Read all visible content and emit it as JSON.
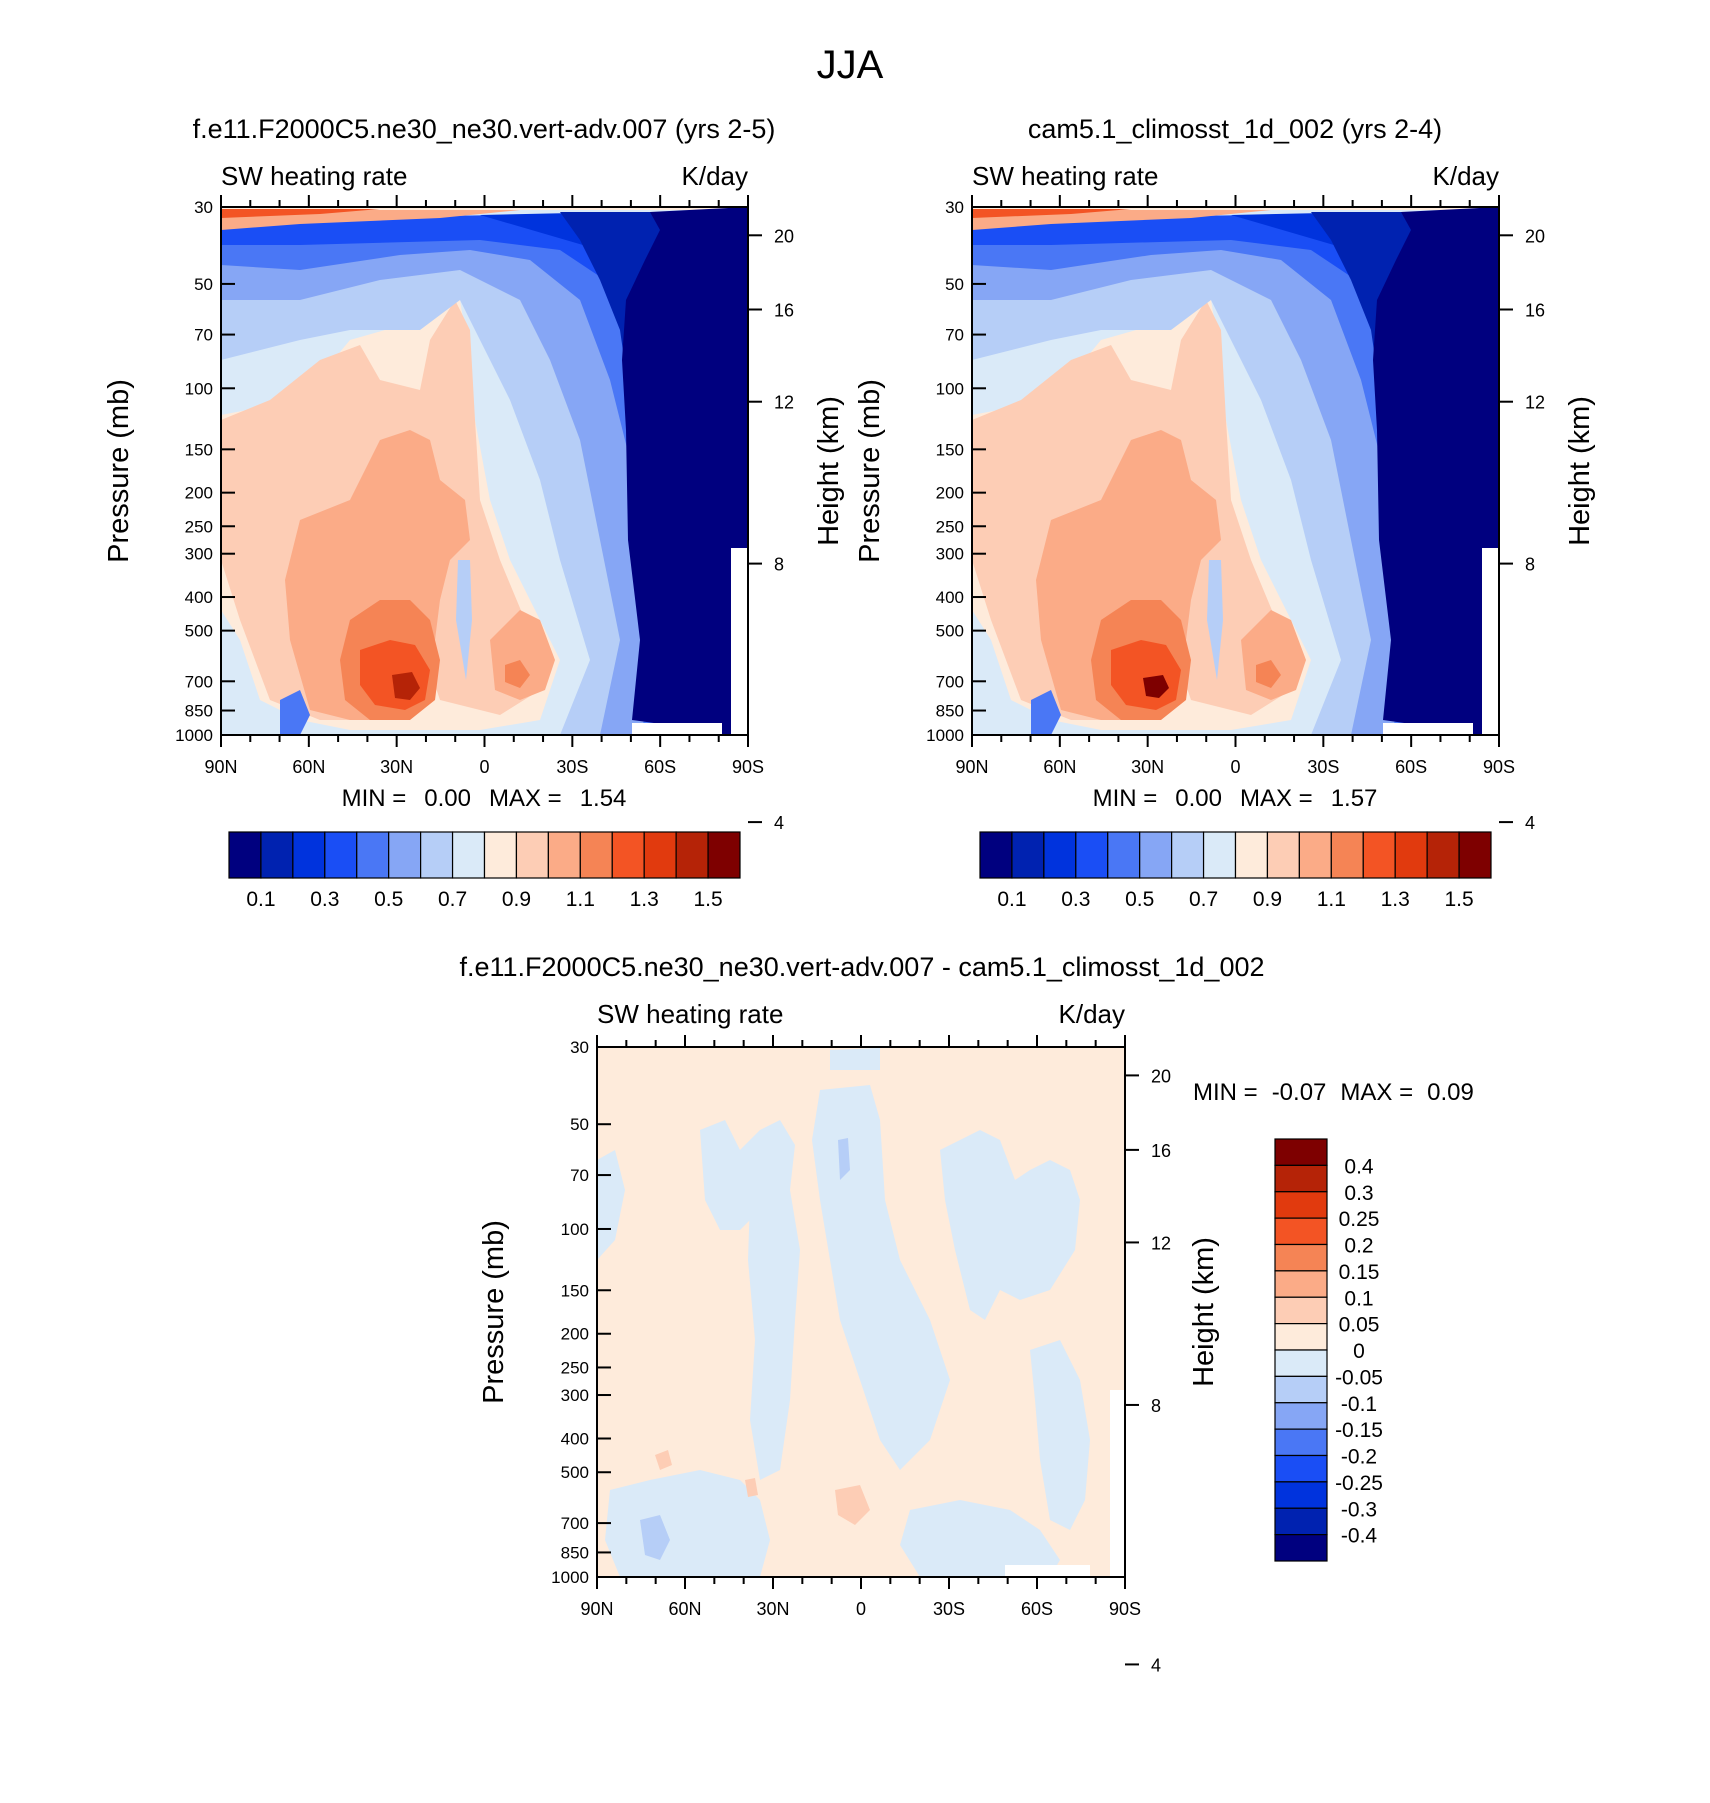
{
  "figure": {
    "title": "JJA"
  },
  "chart_data": [
    {
      "type": "heatmap",
      "title": "f.e11.F2000C5.ne30_ne30.vert-adv.007 (yrs 2-5)",
      "left_label": "SW heating rate",
      "right_label": "K/day",
      "ylabel": "Pressure (mb)",
      "ylabel_right": "Height (km)",
      "x_ticks": [
        "90N",
        "60N",
        "30N",
        "0",
        "30S",
        "60S",
        "90S"
      ],
      "y_ticks": [
        "30",
        "50",
        "70",
        "100",
        "150",
        "200",
        "250",
        "300",
        "400",
        "500",
        "700",
        "850",
        "1000"
      ],
      "height_ticks": [
        "20",
        "16",
        "12",
        "8",
        "4"
      ],
      "stats": {
        "min_label": "MIN =",
        "min": "0.00",
        "max_label": "MAX =",
        "max": "1.54"
      },
      "colorbar": {
        "orientation": "horizontal",
        "labels": [
          "0.1",
          "0.3",
          "0.5",
          "0.7",
          "0.9",
          "1.1",
          "1.3",
          "1.5"
        ],
        "colors": [
          "#00007f",
          "#0022b0",
          "#0033dd",
          "#1a4ef5",
          "#4a77f5",
          "#86a6f5",
          "#b6cef7",
          "#daeaf8",
          "#feebdb",
          "#fdcdb5",
          "#fbab87",
          "#f58455",
          "#f35424",
          "#e13a0e",
          "#b52307",
          "#7e0000"
        ]
      },
      "xlim": [
        -90,
        90
      ],
      "ylim_mb": [
        1000,
        30
      ]
    },
    {
      "type": "heatmap",
      "title": "cam5.1_climosst_1d_002 (yrs 2-4)",
      "left_label": "SW heating rate",
      "right_label": "K/day",
      "ylabel": "Pressure (mb)",
      "ylabel_right": "Height (km)",
      "x_ticks": [
        "90N",
        "60N",
        "30N",
        "0",
        "30S",
        "60S",
        "90S"
      ],
      "y_ticks": [
        "30",
        "50",
        "70",
        "100",
        "150",
        "200",
        "250",
        "300",
        "400",
        "500",
        "700",
        "850",
        "1000"
      ],
      "height_ticks": [
        "20",
        "16",
        "12",
        "8",
        "4"
      ],
      "stats": {
        "min_label": "MIN =",
        "min": "0.00",
        "max_label": "MAX =",
        "max": "1.57"
      },
      "colorbar": {
        "orientation": "horizontal",
        "labels": [
          "0.1",
          "0.3",
          "0.5",
          "0.7",
          "0.9",
          "1.1",
          "1.3",
          "1.5"
        ],
        "colors": [
          "#00007f",
          "#0022b0",
          "#0033dd",
          "#1a4ef5",
          "#4a77f5",
          "#86a6f5",
          "#b6cef7",
          "#daeaf8",
          "#feebdb",
          "#fdcdb5",
          "#fbab87",
          "#f58455",
          "#f35424",
          "#e13a0e",
          "#b52307",
          "#7e0000"
        ]
      },
      "xlim": [
        -90,
        90
      ],
      "ylim_mb": [
        1000,
        30
      ]
    },
    {
      "type": "heatmap",
      "title": "f.e11.F2000C5.ne30_ne30.vert-adv.007 - cam5.1_climosst_1d_002",
      "left_label": "SW heating rate",
      "right_label": "K/day",
      "ylabel": "Pressure (mb)",
      "ylabel_right": "Height (km)",
      "x_ticks": [
        "90N",
        "60N",
        "30N",
        "0",
        "30S",
        "60S",
        "90S"
      ],
      "y_ticks": [
        "30",
        "50",
        "70",
        "100",
        "150",
        "200",
        "250",
        "300",
        "400",
        "500",
        "700",
        "850",
        "1000"
      ],
      "height_ticks": [
        "20",
        "16",
        "12",
        "8",
        "4"
      ],
      "stats": {
        "min_label": "MIN =",
        "min": "-0.07",
        "max_label": "MAX =",
        "max": "0.09"
      },
      "colorbar": {
        "orientation": "vertical",
        "labels": [
          "0.4",
          "0.3",
          "0.25",
          "0.2",
          "0.15",
          "0.1",
          "0.05",
          "0",
          "-0.05",
          "-0.1",
          "-0.15",
          "-0.2",
          "-0.25",
          "-0.3",
          "-0.4"
        ],
        "colors": [
          "#7e0000",
          "#b52307",
          "#e13a0e",
          "#f35424",
          "#f58455",
          "#fbab87",
          "#fdcdb5",
          "#feebdb",
          "#daeaf8",
          "#b6cef7",
          "#86a6f5",
          "#4a77f5",
          "#1a4ef5",
          "#0033dd",
          "#0022b0",
          "#00007f"
        ]
      },
      "xlim": [
        -90,
        90
      ],
      "ylim_mb": [
        1000,
        30
      ]
    }
  ]
}
